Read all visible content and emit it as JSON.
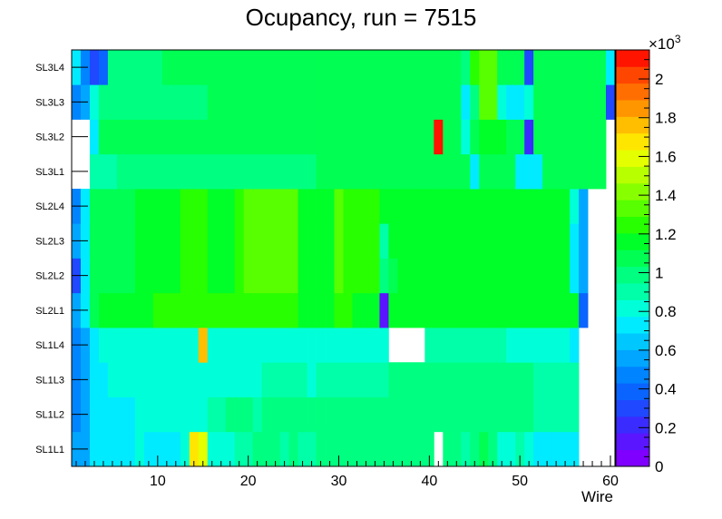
{
  "chart_data": {
    "type": "heatmap",
    "title": "Ocupancy, run = 7515",
    "xlabel": "Wire",
    "ylabel": "",
    "xlim": [
      0.5,
      60.5
    ],
    "x_ticks": [
      "10",
      "20",
      "30",
      "40",
      "50",
      "60"
    ],
    "x_tick_values": [
      10,
      20,
      30,
      40,
      50,
      60
    ],
    "y_categories": [
      "SL1L1",
      "SL1L2",
      "SL1L3",
      "SL1L4",
      "SL2L1",
      "SL2L2",
      "SL2L3",
      "SL2L4",
      "SL3L1",
      "SL3L2",
      "SL3L3",
      "SL3L4"
    ],
    "z_range": [
      0,
      2150
    ],
    "z_exponent_label": "×10",
    "z_exponent_sup": "3",
    "z_ticks": [
      "0",
      "0.2",
      "0.4",
      "0.6",
      "0.8",
      "1",
      "1.2",
      "1.4",
      "1.6",
      "1.8",
      "2"
    ],
    "z_tick_values": [
      0,
      200,
      400,
      600,
      800,
      1000,
      1200,
      1400,
      1600,
      1800,
      2000
    ],
    "palette": [
      "#7f00ff",
      "#5a16ff",
      "#3a2cff",
      "#1f48ff",
      "#0a64ff",
      "#0084ff",
      "#00a6ff",
      "#00c8ff",
      "#00ebff",
      "#00ffd8",
      "#00ffa8",
      "#00ff80",
      "#00ff52",
      "#00ff28",
      "#28ff00",
      "#58ff00",
      "#88ff00",
      "#b8ff00",
      "#e4ff00",
      "#ffe600",
      "#ffbe00",
      "#ff9600",
      "#ff6e00",
      "#ff4600",
      "#ff1400"
    ],
    "z_values": [
      [
        550,
        550,
        750,
        750,
        750,
        750,
        750,
        800,
        750,
        750,
        750,
        750,
        800,
        1650,
        1550,
        800,
        800,
        800,
        900,
        900,
        950,
        950,
        950,
        900,
        950,
        900,
        900,
        950,
        950,
        1000,
        950,
        950,
        1000,
        950,
        1000,
        950,
        950,
        950,
        950,
        950,
        0,
        950,
        950,
        900,
        950,
        1050,
        950,
        850,
        850,
        900,
        850,
        750,
        750,
        750,
        750,
        750,
        0,
        0,
        0,
        0
      ],
      [
        480,
        550,
        750,
        750,
        750,
        750,
        750,
        800,
        800,
        800,
        800,
        800,
        800,
        800,
        800,
        900,
        900,
        950,
        950,
        950,
        900,
        950,
        950,
        950,
        950,
        950,
        950,
        950,
        950,
        950,
        950,
        950,
        950,
        950,
        1000,
        950,
        950,
        950,
        950,
        950,
        950,
        950,
        950,
        950,
        950,
        950,
        950,
        950,
        950,
        950,
        950,
        900,
        900,
        900,
        900,
        900,
        0,
        0,
        0,
        0
      ],
      [
        450,
        550,
        750,
        750,
        800,
        800,
        800,
        800,
        800,
        800,
        800,
        800,
        800,
        800,
        800,
        850,
        850,
        850,
        850,
        850,
        850,
        900,
        900,
        900,
        900,
        900,
        850,
        900,
        900,
        900,
        900,
        900,
        900,
        900,
        900,
        950,
        950,
        950,
        950,
        950,
        950,
        950,
        950,
        950,
        950,
        950,
        950,
        950,
        950,
        950,
        950,
        900,
        900,
        900,
        900,
        900,
        0,
        0,
        0,
        0
      ],
      [
        450,
        600,
        700,
        800,
        800,
        800,
        800,
        800,
        800,
        800,
        800,
        800,
        800,
        800,
        1800,
        850,
        850,
        850,
        850,
        850,
        850,
        850,
        850,
        850,
        850,
        850,
        850,
        850,
        850,
        850,
        850,
        850,
        850,
        850,
        850,
        0,
        0,
        0,
        0,
        900,
        900,
        900,
        900,
        900,
        900,
        900,
        900,
        900,
        850,
        800,
        800,
        800,
        800,
        800,
        800,
        700,
        0,
        0,
        0,
        0
      ],
      [
        600,
        700,
        1100,
        1150,
        1150,
        1150,
        1150,
        1150,
        1150,
        1250,
        1250,
        1250,
        1250,
        1250,
        1250,
        1250,
        1250,
        1250,
        1250,
        1250,
        1250,
        1250,
        1250,
        1250,
        1250,
        1200,
        1200,
        1200,
        1200,
        1250,
        1250,
        1200,
        1200,
        1200,
        150,
        1200,
        1200,
        1200,
        1200,
        1200,
        1200,
        1200,
        1200,
        1200,
        1200,
        1200,
        1200,
        1200,
        1200,
        1200,
        1200,
        1200,
        1200,
        1200,
        1200,
        1200,
        400,
        0,
        0,
        0
      ],
      [
        300,
        700,
        1100,
        1100,
        1100,
        1100,
        1100,
        1150,
        1150,
        1150,
        1150,
        1150,
        1250,
        1250,
        1250,
        1150,
        1150,
        1150,
        1250,
        1300,
        1300,
        1300,
        1300,
        1300,
        1300,
        1200,
        1200,
        1200,
        1200,
        1300,
        1250,
        1250,
        1250,
        1250,
        1000,
        1100,
        1150,
        1150,
        1150,
        1150,
        1150,
        1150,
        1150,
        1150,
        1150,
        1150,
        1150,
        1150,
        1150,
        1150,
        1150,
        1150,
        1150,
        1150,
        1150,
        700,
        550,
        0,
        0,
        0
      ],
      [
        550,
        700,
        1100,
        1100,
        1100,
        1100,
        1100,
        1150,
        1150,
        1150,
        1150,
        1150,
        1250,
        1250,
        1250,
        1150,
        1150,
        1150,
        1250,
        1300,
        1300,
        1300,
        1300,
        1300,
        1300,
        1200,
        1200,
        1200,
        1200,
        1300,
        1250,
        1250,
        1250,
        1250,
        900,
        1150,
        1150,
        1150,
        1150,
        1150,
        1150,
        1150,
        1150,
        1150,
        1150,
        1150,
        1150,
        1150,
        1150,
        1150,
        1150,
        1150,
        1150,
        1150,
        1150,
        700,
        550,
        0,
        0,
        0
      ],
      [
        450,
        750,
        1100,
        1100,
        1100,
        1100,
        1100,
        1150,
        1150,
        1150,
        1150,
        1150,
        1250,
        1250,
        1250,
        1150,
        1150,
        1150,
        1250,
        1300,
        1300,
        1300,
        1300,
        1300,
        1300,
        1200,
        1200,
        1200,
        1200,
        1300,
        1250,
        1250,
        1250,
        1250,
        1150,
        1150,
        1150,
        1150,
        1150,
        1150,
        1150,
        1150,
        1150,
        1150,
        1150,
        1150,
        1150,
        1150,
        1150,
        1150,
        1150,
        1150,
        1150,
        1150,
        1150,
        850,
        550,
        0,
        0,
        0
      ],
      [
        0,
        0,
        900,
        900,
        900,
        950,
        950,
        950,
        950,
        950,
        950,
        950,
        950,
        950,
        950,
        1000,
        1000,
        1000,
        1000,
        1000,
        1000,
        1000,
        1000,
        1000,
        1000,
        1000,
        1000,
        1050,
        1050,
        1050,
        1050,
        1050,
        1050,
        1050,
        1050,
        1050,
        1050,
        1050,
        1050,
        1050,
        1050,
        1050,
        1050,
        1050,
        750,
        1050,
        1050,
        1050,
        1050,
        700,
        700,
        700,
        1050,
        1050,
        1050,
        1050,
        1050,
        1050,
        1050,
        0
      ],
      [
        0,
        0,
        750,
        1050,
        1050,
        1050,
        1050,
        1050,
        1050,
        1050,
        1050,
        1050,
        1050,
        1050,
        1050,
        1050,
        1050,
        1050,
        1050,
        1050,
        1050,
        1050,
        1050,
        1050,
        1050,
        1050,
        1050,
        1050,
        1050,
        1100,
        1100,
        1100,
        1100,
        1100,
        1100,
        1100,
        1100,
        1100,
        1100,
        1100,
        2100,
        1100,
        1100,
        800,
        1100,
        1200,
        1200,
        1200,
        1100,
        1100,
        200,
        1100,
        1100,
        1100,
        1100,
        1100,
        1100,
        1100,
        1100,
        0
      ],
      [
        450,
        600,
        850,
        1000,
        1000,
        1000,
        1000,
        1000,
        1000,
        1000,
        1000,
        1000,
        1000,
        1000,
        1000,
        1050,
        1050,
        1050,
        1050,
        1050,
        1050,
        1050,
        1050,
        1050,
        1050,
        1050,
        1050,
        1050,
        1050,
        1050,
        1050,
        1050,
        1050,
        1050,
        1050,
        1050,
        1050,
        1050,
        1050,
        1050,
        1050,
        1050,
        1050,
        750,
        950,
        1300,
        1350,
        850,
        750,
        750,
        800,
        1050,
        1050,
        1050,
        1050,
        1050,
        1050,
        1050,
        1050,
        300
      ],
      [
        750,
        500,
        300,
        400,
        1000,
        1000,
        1000,
        1000,
        1000,
        1000,
        1050,
        1050,
        1050,
        1050,
        1050,
        1050,
        1050,
        1050,
        1050,
        1050,
        1050,
        1050,
        1050,
        1050,
        1050,
        1050,
        1050,
        1050,
        1050,
        1050,
        1050,
        1050,
        1050,
        1050,
        1050,
        1050,
        1050,
        1050,
        1050,
        1050,
        1050,
        1050,
        1050,
        950,
        1250,
        1300,
        1350,
        1050,
        1050,
        1050,
        300,
        1050,
        1050,
        1050,
        1050,
        1050,
        1050,
        1050,
        1050,
        750
      ]
    ]
  }
}
